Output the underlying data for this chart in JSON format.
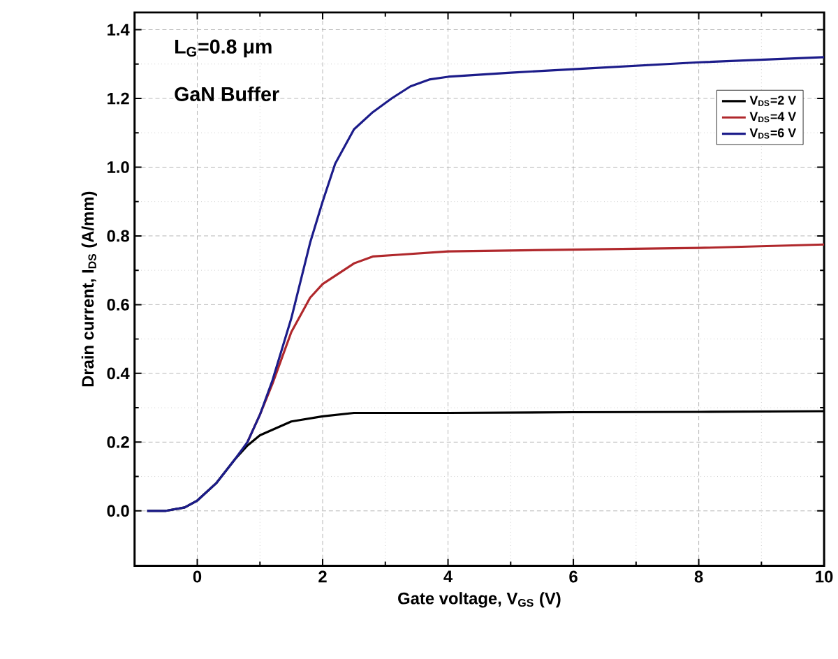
{
  "chart_data": {
    "type": "line",
    "xlabel": "Gate voltage, V$_{GS}$ (V)",
    "ylabel": "Drain current, I$_{DS}$ (A/mm)",
    "annotations": [
      "L$_{G}$=0.8 μm",
      "GaN Buffer"
    ],
    "xlim": [
      -1,
      10
    ],
    "ylim": [
      -0.16,
      1.45
    ],
    "xticks": [
      0,
      2,
      4,
      6,
      8,
      10
    ],
    "yticks": [
      {
        "value": 0,
        "label": "0.0"
      },
      {
        "value": 0.2,
        "label": "0.2"
      },
      {
        "value": 0.4,
        "label": "0.4"
      },
      {
        "value": 0.6,
        "label": "0.6"
      },
      {
        "value": 0.8,
        "label": "0.8"
      },
      {
        "value": 1.0,
        "label": "1.0"
      },
      {
        "value": 1.2,
        "label": "1.2"
      },
      {
        "value": 1.4,
        "label": "1.4"
      }
    ],
    "grid": true,
    "legend": "top right",
    "marker": "none",
    "line_style": "solid",
    "series": [
      {
        "name": "V$_{DS}$=2 V",
        "color": "#000000",
        "x": [
          -0.8,
          -0.5,
          -0.2,
          0,
          0.3,
          0.6,
          0.8,
          1.0,
          1.5,
          2.0,
          2.5,
          4,
          6,
          8,
          10
        ],
        "values": [
          0,
          0,
          0.01,
          0.03,
          0.08,
          0.15,
          0.19,
          0.22,
          0.26,
          0.275,
          0.285,
          0.285,
          0.287,
          0.288,
          0.29
        ]
      },
      {
        "name": "V$_{DS}$=4 V",
        "color": "#b0282c",
        "x": [
          0.8,
          1.0,
          1.2,
          1.5,
          1.8,
          2.0,
          2.5,
          2.8,
          3.2,
          4,
          6,
          8,
          10
        ],
        "values": [
          0.2,
          0.28,
          0.37,
          0.52,
          0.62,
          0.66,
          0.72,
          0.74,
          0.745,
          0.755,
          0.76,
          0.765,
          0.775
        ]
      },
      {
        "name": "V$_{DS}$=6 V",
        "color": "#1c1c8a",
        "x": [
          -0.8,
          -0.5,
          -0.2,
          0,
          0.3,
          0.6,
          0.8,
          1.0,
          1.2,
          1.5,
          1.8,
          2.0,
          2.2,
          2.5,
          2.8,
          3.1,
          3.4,
          3.7,
          4,
          5,
          6,
          8,
          10
        ],
        "values": [
          0,
          0,
          0.01,
          0.03,
          0.08,
          0.15,
          0.2,
          0.28,
          0.38,
          0.56,
          0.78,
          0.9,
          1.01,
          1.11,
          1.16,
          1.2,
          1.235,
          1.255,
          1.263,
          1.275,
          1.285,
          1.305,
          1.32
        ]
      }
    ]
  }
}
